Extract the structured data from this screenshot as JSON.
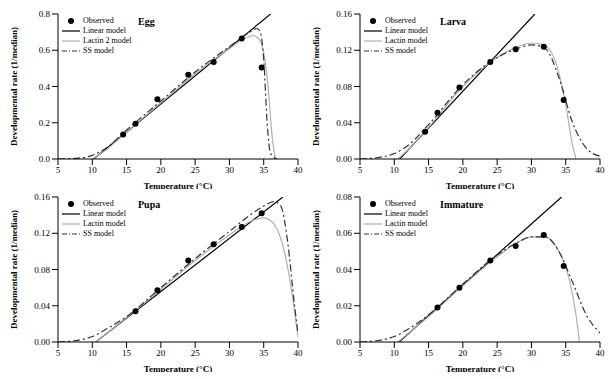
{
  "chart_data": [
    {
      "type": "line",
      "title": "Egg",
      "x_label": "Temperature (°C)",
      "y_label": "Developmental rate (1/median)",
      "xlim": [
        5,
        40
      ],
      "xticks": [
        5,
        10,
        15,
        20,
        25,
        30,
        35,
        40
      ],
      "ylim": [
        0,
        0.8
      ],
      "yticks": [
        {
          "value": 0,
          "label": "0.0"
        },
        0.2,
        0.4,
        0.6,
        0.8
      ],
      "grid": false,
      "legend": "upper left",
      "series": [
        {
          "name": "Observed",
          "type": "scatter",
          "marker": "circle",
          "color": "#000000",
          "x": [
            14.5,
            16.3,
            19.5,
            24,
            27.7,
            31.8,
            34.7
          ],
          "values": [
            0.135,
            0.195,
            0.33,
            0.465,
            0.535,
            0.665,
            0.505
          ]
        },
        {
          "name": "Linear model",
          "type": "line",
          "line_style": "solid",
          "color": "#000000",
          "x": [
            10.2,
            36
          ],
          "values": [
            0,
            0.8
          ]
        },
        {
          "name": "Lactin 2 model",
          "type": "line",
          "line_style": "solid",
          "color": "#b0b0b0",
          "x": [
            10,
            12,
            15,
            20,
            25,
            30,
            32,
            33.5,
            34.5,
            35.5,
            36.3,
            36.7
          ],
          "values": [
            0,
            0.05,
            0.15,
            0.31,
            0.47,
            0.61,
            0.66,
            0.68,
            0.65,
            0.45,
            0.1,
            0
          ]
        },
        {
          "name": "SS model",
          "type": "line",
          "line_style": "dashdot",
          "color": "#333333",
          "x": [
            5,
            8,
            10,
            12,
            15,
            20,
            25,
            30,
            33,
            34,
            34.5,
            35,
            35.5,
            36,
            37
          ],
          "values": [
            0,
            0.005,
            0.02,
            0.06,
            0.16,
            0.32,
            0.48,
            0.62,
            0.7,
            0.72,
            0.7,
            0.55,
            0.2,
            0.03,
            0
          ]
        }
      ]
    },
    {
      "type": "line",
      "title": "Larva",
      "x_label": "Temperature (°C)",
      "y_label": "Developmental rate (1/median)",
      "xlim": [
        5,
        40
      ],
      "xticks": [
        5,
        10,
        15,
        20,
        25,
        30,
        35,
        40
      ],
      "ylim": [
        0,
        0.16
      ],
      "yticks": [
        {
          "value": 0,
          "label": "0.00"
        },
        0.04,
        0.08,
        0.12,
        0.16
      ],
      "grid": false,
      "legend": "upper left",
      "series": [
        {
          "name": "Observed",
          "type": "scatter",
          "marker": "circle",
          "color": "#000000",
          "x": [
            14.5,
            16.3,
            19.5,
            24,
            27.7,
            31.8,
            34.7
          ],
          "values": [
            0.03,
            0.051,
            0.079,
            0.107,
            0.121,
            0.124,
            0.065
          ]
        },
        {
          "name": "Linear model",
          "type": "line",
          "line_style": "solid",
          "color": "#000000",
          "x": [
            10.8,
            30.5
          ],
          "values": [
            0,
            0.16
          ]
        },
        {
          "name": "Lactin model",
          "type": "line",
          "line_style": "solid",
          "color": "#b0b0b0",
          "x": [
            10.5,
            12,
            15,
            20,
            25,
            28,
            30,
            32,
            34,
            35,
            36,
            36.5
          ],
          "values": [
            0,
            0.01,
            0.035,
            0.08,
            0.112,
            0.124,
            0.128,
            0.125,
            0.095,
            0.06,
            0.015,
            0
          ]
        },
        {
          "name": "SS model",
          "type": "line",
          "line_style": "dashdot",
          "color": "#333333",
          "x": [
            5,
            8,
            10,
            12,
            15,
            20,
            25,
            28,
            30,
            32,
            34,
            36,
            38,
            40
          ],
          "values": [
            0,
            0.002,
            0.006,
            0.015,
            0.038,
            0.082,
            0.112,
            0.122,
            0.126,
            0.122,
            0.09,
            0.04,
            0.012,
            0.003
          ]
        }
      ]
    },
    {
      "type": "line",
      "title": "Pupa",
      "x_label": "Temperature (°C)",
      "y_label": "Developmental rate (1/median)",
      "xlim": [
        5,
        40
      ],
      "xticks": [
        5,
        10,
        15,
        20,
        25,
        30,
        35,
        40
      ],
      "ylim": [
        0,
        0.16
      ],
      "yticks": [
        {
          "value": 0,
          "label": "0.00"
        },
        0.04,
        0.08,
        0.12,
        0.16
      ],
      "grid": false,
      "legend": "upper left",
      "series": [
        {
          "name": "Observed",
          "type": "scatter",
          "marker": "circle",
          "color": "#000000",
          "x": [
            16.3,
            19.5,
            24,
            27.7,
            31.8,
            34.7
          ],
          "values": [
            0.034,
            0.057,
            0.09,
            0.108,
            0.127,
            0.142
          ]
        },
        {
          "name": "Linear model",
          "type": "line",
          "line_style": "solid",
          "color": "#000000",
          "x": [
            10.5,
            37.8
          ],
          "values": [
            0,
            0.16
          ]
        },
        {
          "name": "Lactin model",
          "type": "line",
          "line_style": "solid",
          "color": "#b0b0b0",
          "x": [
            10.5,
            15,
            20,
            25,
            30,
            33,
            35,
            36.5,
            38,
            39,
            40
          ],
          "values": [
            0,
            0.027,
            0.058,
            0.09,
            0.118,
            0.133,
            0.137,
            0.13,
            0.1,
            0.06,
            0.005
          ]
        },
        {
          "name": "SS model",
          "type": "line",
          "line_style": "dashdot",
          "color": "#333333",
          "x": [
            5,
            8,
            10,
            12,
            15,
            20,
            25,
            30,
            33,
            35,
            36.5,
            37.5,
            38.5,
            39.5,
            40
          ],
          "values": [
            0,
            0.002,
            0.006,
            0.014,
            0.028,
            0.06,
            0.092,
            0.122,
            0.14,
            0.15,
            0.155,
            0.15,
            0.11,
            0.04,
            0.01
          ]
        }
      ]
    },
    {
      "type": "line",
      "title": "Immature",
      "x_label": "Temperature (°C)",
      "y_label": "Developmental rate (1/median)",
      "xlim": [
        5,
        40
      ],
      "xticks": [
        5,
        10,
        15,
        20,
        25,
        30,
        35,
        40
      ],
      "ylim": [
        0,
        0.08
      ],
      "yticks": [
        {
          "value": 0,
          "label": "0.00"
        },
        0.02,
        0.04,
        0.06,
        0.08
      ],
      "grid": false,
      "legend": "upper left",
      "series": [
        {
          "name": "Observed",
          "type": "scatter",
          "marker": "circle",
          "color": "#000000",
          "x": [
            16.3,
            19.5,
            24,
            27.7,
            31.8,
            34.7
          ],
          "values": [
            0.019,
            0.03,
            0.045,
            0.053,
            0.059,
            0.042
          ]
        },
        {
          "name": "Linear model",
          "type": "line",
          "line_style": "solid",
          "color": "#000000",
          "x": [
            10.7,
            34.4
          ],
          "values": [
            0,
            0.08
          ]
        },
        {
          "name": "Lactin model",
          "type": "line",
          "line_style": "solid",
          "color": "#b0b0b0",
          "x": [
            10.5,
            15,
            20,
            25,
            28,
            30,
            32,
            34,
            35.5,
            36.5,
            37
          ],
          "values": [
            0,
            0.014,
            0.031,
            0.047,
            0.055,
            0.058,
            0.058,
            0.05,
            0.035,
            0.015,
            0
          ]
        },
        {
          "name": "SS model",
          "type": "line",
          "line_style": "dashdot",
          "color": "#333333",
          "x": [
            5,
            8,
            10,
            12,
            15,
            20,
            25,
            28,
            30,
            32,
            34,
            36,
            38,
            40
          ],
          "values": [
            0,
            0.001,
            0.003,
            0.007,
            0.015,
            0.032,
            0.048,
            0.055,
            0.058,
            0.058,
            0.05,
            0.033,
            0.015,
            0.005
          ]
        }
      ]
    }
  ]
}
